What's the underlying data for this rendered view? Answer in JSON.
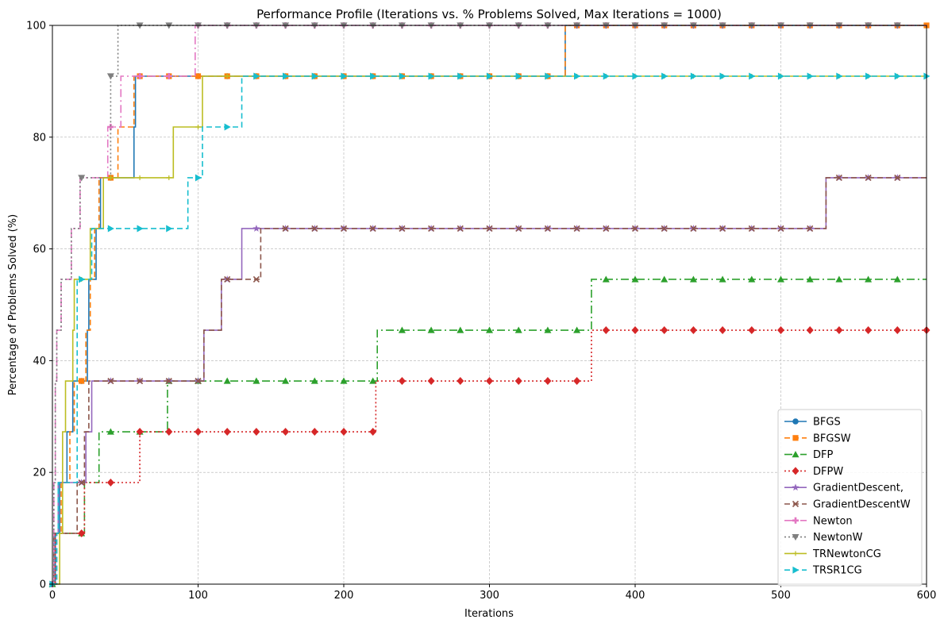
{
  "chart_data": {
    "type": "line",
    "step": true,
    "title": "Performance Profile (Iterations vs. % Problems Solved, Max Iterations = 1000)",
    "xlabel": "Iterations",
    "ylabel": "Percentage of Problems Solved (%)",
    "xlim": [
      0,
      600
    ],
    "ylim": [
      0,
      100
    ],
    "xticks": [
      0,
      100,
      200,
      300,
      400,
      500,
      600
    ],
    "yticks": [
      0,
      20,
      40,
      60,
      80,
      100
    ],
    "grid": true,
    "legend_position": "lower-right",
    "series": [
      {
        "name": "BFGS",
        "color": "#1f77b4",
        "dash": "",
        "marker": "circle",
        "points": [
          [
            0,
            0
          ],
          [
            2,
            9.09
          ],
          [
            5,
            18.18
          ],
          [
            10,
            27.27
          ],
          [
            14,
            36.36
          ],
          [
            24,
            45.45
          ],
          [
            25,
            54.55
          ],
          [
            30,
            63.64
          ],
          [
            33,
            72.73
          ],
          [
            56,
            81.82
          ],
          [
            57,
            90.91
          ],
          [
            352,
            100
          ]
        ],
        "marker_x": [
          0,
          20,
          40,
          60,
          80,
          100,
          120,
          140,
          160,
          180,
          200,
          220,
          240,
          260,
          280,
          300,
          320,
          340,
          360,
          380,
          400,
          420,
          440,
          460,
          480,
          500,
          520,
          540,
          560,
          580
        ]
      },
      {
        "name": "BFGSW",
        "color": "#ff7f0e",
        "dash": "7,4",
        "marker": "square",
        "points": [
          [
            0,
            0
          ],
          [
            3,
            9.09
          ],
          [
            6,
            18.18
          ],
          [
            12,
            27.27
          ],
          [
            15,
            36.36
          ],
          [
            23,
            45.45
          ],
          [
            26,
            54.55
          ],
          [
            29,
            63.64
          ],
          [
            32,
            72.73
          ],
          [
            45,
            81.82
          ],
          [
            56,
            90.91
          ],
          [
            352,
            100
          ]
        ],
        "marker_x": [
          0,
          20,
          40,
          60,
          80,
          100,
          120,
          140,
          160,
          180,
          200,
          220,
          240,
          260,
          280,
          300,
          320,
          340,
          360,
          380,
          400,
          420,
          440,
          460,
          480,
          500,
          520,
          540,
          560,
          580,
          600
        ]
      },
      {
        "name": "DFP",
        "color": "#2ca02c",
        "dash": "10,4,2,4",
        "marker": "triangle-up",
        "points": [
          [
            0,
            0
          ],
          [
            1,
            9.09
          ],
          [
            22,
            18.18
          ],
          [
            32,
            27.27
          ],
          [
            79,
            36.36
          ],
          [
            223,
            45.45
          ],
          [
            370,
            54.55
          ]
        ],
        "marker_x": [
          0,
          20,
          40,
          60,
          80,
          100,
          120,
          140,
          160,
          180,
          200,
          220,
          240,
          260,
          280,
          300,
          320,
          340,
          360,
          380,
          400,
          420,
          440,
          460,
          480,
          500,
          520,
          540,
          560,
          580
        ]
      },
      {
        "name": "DFPW",
        "color": "#d62728",
        "dash": "2,3",
        "marker": "diamond",
        "points": [
          [
            0,
            0
          ],
          [
            2,
            9.09
          ],
          [
            22,
            18.18
          ],
          [
            60,
            27.27
          ],
          [
            222,
            36.36
          ],
          [
            370,
            45.45
          ]
        ],
        "marker_x": [
          20,
          40,
          60,
          80,
          100,
          120,
          140,
          160,
          180,
          200,
          220,
          240,
          260,
          280,
          300,
          320,
          340,
          360,
          380,
          400,
          420,
          440,
          460,
          480,
          500,
          520,
          540,
          560,
          580,
          600
        ]
      },
      {
        "name": "GradientDescent,",
        "color": "#9467bd",
        "dash": "",
        "marker": "star",
        "points": [
          [
            0,
            0
          ],
          [
            1,
            9.09
          ],
          [
            4,
            18.18
          ],
          [
            23,
            27.27
          ],
          [
            27,
            36.36
          ],
          [
            104,
            45.45
          ],
          [
            116,
            54.55
          ],
          [
            130,
            63.64
          ],
          [
            531,
            72.73
          ]
        ],
        "marker_x": [
          20,
          40,
          60,
          80,
          100,
          120,
          140,
          160,
          180,
          200,
          220,
          240,
          260,
          280,
          300,
          320,
          340,
          360,
          380,
          400,
          420,
          440,
          460,
          480,
          500,
          520,
          540,
          560,
          580
        ]
      },
      {
        "name": "GradientDescentW",
        "color": "#8c564b",
        "dash": "7,4",
        "marker": "x",
        "points": [
          [
            0,
            0
          ],
          [
            1,
            9.09
          ],
          [
            17,
            18.18
          ],
          [
            22,
            27.27
          ],
          [
            25,
            36.36
          ],
          [
            104,
            45.45
          ],
          [
            116,
            54.55
          ],
          [
            143,
            63.64
          ],
          [
            531,
            72.73
          ]
        ],
        "marker_x": [
          20,
          40,
          60,
          80,
          100,
          120,
          140,
          160,
          180,
          200,
          220,
          240,
          260,
          280,
          300,
          320,
          340,
          360,
          380,
          400,
          420,
          440,
          460,
          480,
          500,
          520,
          540,
          560,
          580
        ]
      },
      {
        "name": "Newton",
        "color": "#e377c2",
        "dash": "10,4,2,4",
        "marker": "plus",
        "points": [
          [
            0,
            0
          ],
          [
            1,
            18.18
          ],
          [
            2,
            36.36
          ],
          [
            3,
            45.45
          ],
          [
            6,
            54.55
          ],
          [
            13,
            63.64
          ],
          [
            19,
            72.73
          ],
          [
            38,
            81.82
          ],
          [
            47,
            90.91
          ],
          [
            98,
            100
          ]
        ],
        "marker_x": [
          0,
          40,
          60,
          80,
          100,
          120,
          140,
          160,
          180,
          200,
          220,
          240,
          260,
          280,
          300,
          320,
          340,
          360,
          380,
          400,
          420,
          440,
          460,
          480,
          500,
          520,
          540,
          560,
          580
        ]
      },
      {
        "name": "NewtonW",
        "color": "#7f7f7f",
        "dash": "2,3",
        "marker": "triangle-down",
        "points": [
          [
            0,
            0
          ],
          [
            1,
            18.18
          ],
          [
            2,
            36.36
          ],
          [
            3,
            45.45
          ],
          [
            6,
            54.55
          ],
          [
            13,
            63.64
          ],
          [
            19,
            72.73
          ],
          [
            40,
            90.91
          ],
          [
            45,
            100
          ]
        ],
        "marker_x": [
          20,
          40,
          60,
          80,
          100,
          120,
          140,
          160,
          180,
          200,
          220,
          240,
          260,
          280,
          300,
          320,
          340,
          360,
          380,
          400,
          420,
          440,
          460,
          480,
          500,
          520,
          540,
          560,
          580
        ]
      },
      {
        "name": "TRNewtonCG",
        "color": "#bcbd22",
        "dash": "",
        "marker": "tick",
        "points": [
          [
            0,
            0
          ],
          [
            5,
            9.09
          ],
          [
            7,
            27.27
          ],
          [
            9,
            36.36
          ],
          [
            14,
            45.45
          ],
          [
            15,
            54.55
          ],
          [
            26,
            63.64
          ],
          [
            35,
            72.73
          ],
          [
            83,
            81.82
          ],
          [
            103,
            90.91
          ]
        ],
        "marker_x": [
          20,
          40,
          60,
          80,
          100,
          120,
          140,
          160,
          180,
          200,
          220,
          240,
          260,
          280,
          300,
          320,
          340,
          360,
          380,
          400,
          420,
          440,
          460,
          480,
          500,
          520,
          540,
          560,
          580
        ]
      },
      {
        "name": "TRSR1CG",
        "color": "#17becf",
        "dash": "7,4",
        "marker": "triangle-right",
        "points": [
          [
            0,
            0
          ],
          [
            3,
            9.09
          ],
          [
            4,
            18.18
          ],
          [
            17,
            54.55
          ],
          [
            27,
            63.64
          ],
          [
            93,
            72.73
          ],
          [
            103,
            81.82
          ],
          [
            130,
            90.91
          ]
        ],
        "marker_x": [
          0,
          20,
          40,
          60,
          80,
          100,
          120,
          140,
          160,
          180,
          200,
          220,
          240,
          260,
          280,
          300,
          320,
          340,
          360,
          380,
          400,
          420,
          440,
          460,
          480,
          500,
          520,
          540,
          560,
          580,
          600
        ]
      }
    ]
  }
}
